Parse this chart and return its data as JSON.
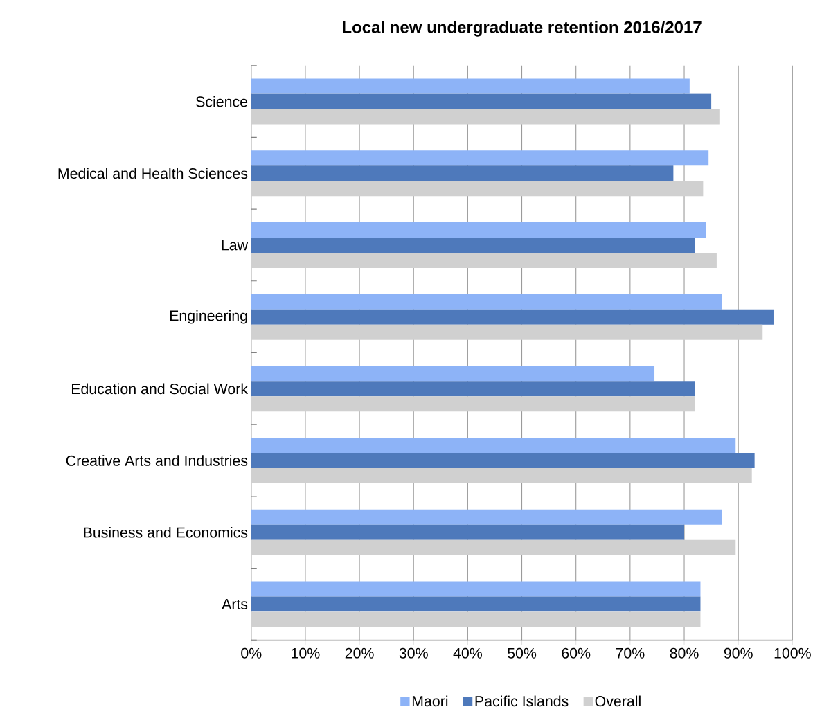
{
  "chart_data": {
    "type": "bar",
    "orientation": "horizontal",
    "title": "Local new undergraduate retention 2016/2017",
    "categories": [
      "Science",
      "Medical and Health Sciences",
      "Law",
      "Engineering",
      "Education and Social Work",
      "Creative Arts and Industries",
      "Business and Economics",
      "Arts"
    ],
    "series": [
      {
        "name": "Maori",
        "color": "#8db3f7",
        "values": [
          81,
          84.5,
          84,
          87,
          74.5,
          89.5,
          87,
          83
        ]
      },
      {
        "name": "Pacific Islands",
        "color": "#4e79bb",
        "values": [
          85,
          78,
          82,
          96.5,
          82,
          93,
          80,
          83
        ]
      },
      {
        "name": "Overall",
        "color": "#d0d0d0",
        "values": [
          86.5,
          83.5,
          86,
          94.5,
          82,
          92.5,
          89.5,
          83
        ]
      }
    ],
    "xlim": [
      0,
      100
    ],
    "xticks": [
      {
        "value": 0,
        "label": "0%"
      },
      {
        "value": 10,
        "label": "10%"
      },
      {
        "value": 20,
        "label": "20%"
      },
      {
        "value": 30,
        "label": "30%"
      },
      {
        "value": 40,
        "label": "40%"
      },
      {
        "value": 50,
        "label": "50%"
      },
      {
        "value": 60,
        "label": "60%"
      },
      {
        "value": 70,
        "label": "70%"
      },
      {
        "value": 80,
        "label": "80%"
      },
      {
        "value": 90,
        "label": "90%"
      },
      {
        "value": 100,
        "label": "100%"
      }
    ],
    "grid": "x",
    "legend": "bottom"
  }
}
